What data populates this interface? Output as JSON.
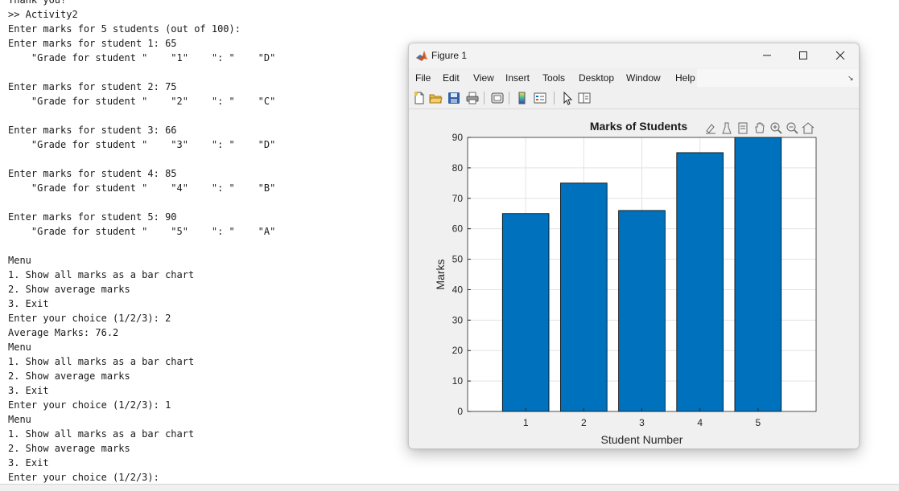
{
  "console": {
    "lines": [
      "Thank you!",
      ">> Activity2",
      "Enter marks for 5 students (out of 100):",
      "Enter marks for student 1: 65",
      "    \"Grade for student \"    \"1\"    \": \"    \"D\"",
      "",
      "Enter marks for student 2: 75",
      "    \"Grade for student \"    \"2\"    \": \"    \"C\"",
      "",
      "Enter marks for student 3: 66",
      "    \"Grade for student \"    \"3\"    \": \"    \"D\"",
      "",
      "Enter marks for student 4: 85",
      "    \"Grade for student \"    \"4\"    \": \"    \"B\"",
      "",
      "Enter marks for student 5: 90",
      "    \"Grade for student \"    \"5\"    \": \"    \"A\"",
      "",
      "Menu",
      "1. Show all marks as a bar chart",
      "2. Show average marks",
      "3. Exit",
      "Enter your choice (1/2/3): 2",
      "Average Marks: 76.2",
      "Menu",
      "1. Show all marks as a bar chart",
      "2. Show average marks",
      "3. Exit",
      "Enter your choice (1/2/3): 1",
      "Menu",
      "1. Show all marks as a bar chart",
      "2. Show average marks",
      "3. Exit",
      "Enter your choice (1/2/3):"
    ]
  },
  "figure": {
    "title": "Figure 1",
    "menu": [
      "File",
      "Edit",
      "View",
      "Insert",
      "Tools",
      "Desktop",
      "Window",
      "Help"
    ],
    "toolbar_icons": [
      "new-file-icon",
      "open-folder-icon",
      "save-icon",
      "print-icon",
      "print-preview-icon",
      "colorbar-icon",
      "legend-icon",
      "pointer-icon",
      "property-editor-icon"
    ],
    "axes_toolbar_icons": [
      "brush-icon",
      "data-tips-icon",
      "export-icon",
      "pan-icon",
      "zoom-in-icon",
      "zoom-out-icon",
      "home-icon"
    ]
  },
  "chart_data": {
    "type": "bar",
    "title": "Marks of Students",
    "xlabel": "Student Number",
    "ylabel": "Marks",
    "categories": [
      "1",
      "2",
      "3",
      "4",
      "5"
    ],
    "values": [
      65,
      75,
      66,
      85,
      90
    ],
    "ylim": [
      0,
      90
    ],
    "xlim": [
      0,
      6
    ],
    "yticks": [
      0,
      10,
      20,
      30,
      40,
      50,
      60,
      70,
      80,
      90
    ],
    "grid": true,
    "bar_color": "#0072BD",
    "bar_edge_color": "#000000"
  }
}
